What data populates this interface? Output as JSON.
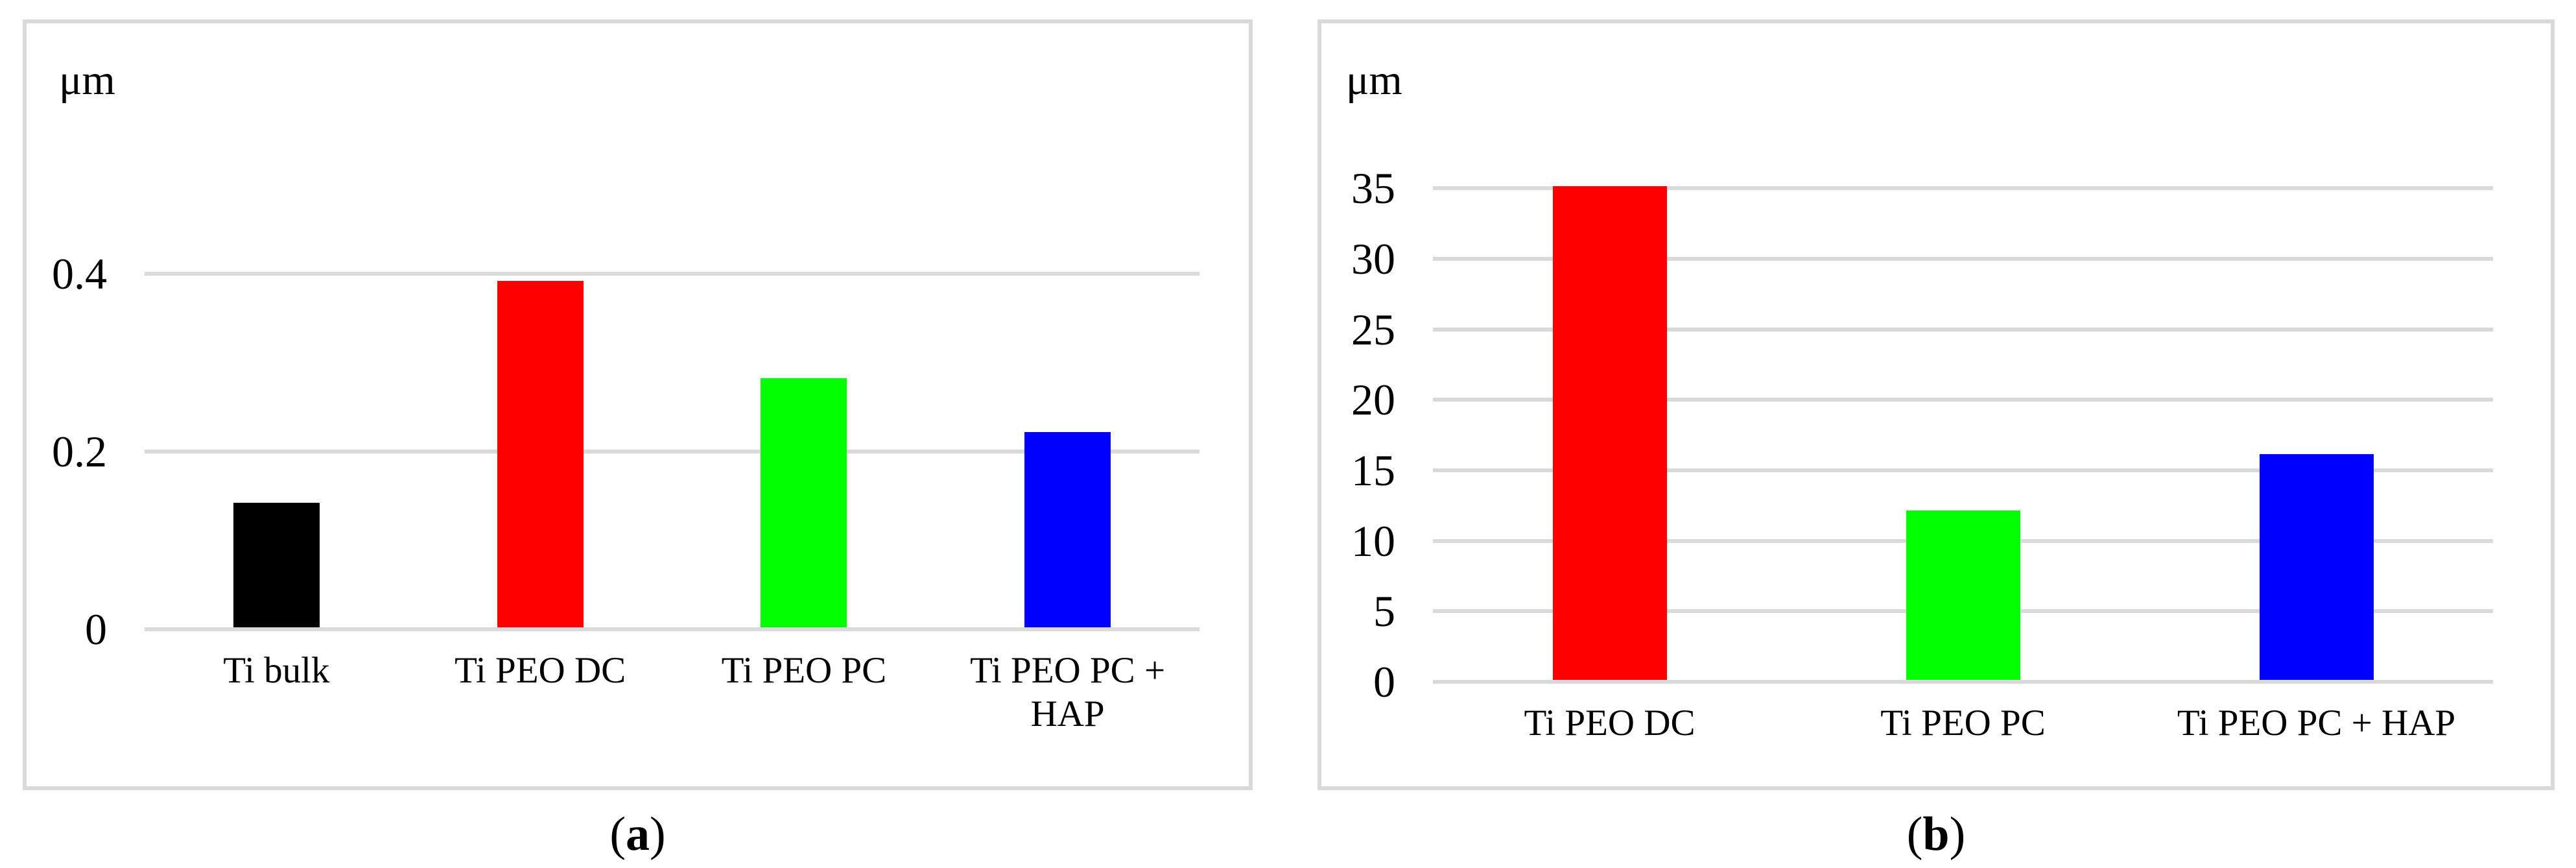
{
  "style": {
    "background": "#FFFFFF",
    "grid_color": "#D9D9D9",
    "panel_border_color": "#D9D9D9",
    "text_color": "#000000"
  },
  "captions": {
    "open": "(",
    "close": ")",
    "a": "a",
    "b": "b"
  },
  "chart_data": [
    {
      "type": "bar",
      "panel": "a",
      "title": "",
      "xlabel": "",
      "ylabel": "μm",
      "categories": [
        "Ti bulk",
        "Ti PEO DC",
        "Ti PEO PC",
        "Ti PEO PC + HAP"
      ],
      "values": [
        0.14,
        0.39,
        0.28,
        0.22
      ],
      "bar_colors": [
        "#000000",
        "#FF0000",
        "#00FF00",
        "#0000FF"
      ],
      "yticks": [
        0,
        0.2,
        0.4
      ],
      "ytick_labels": [
        "0",
        "0.2",
        "0.4"
      ],
      "ylim": [
        0,
        0.45
      ],
      "grid": true,
      "legend": false
    },
    {
      "type": "bar",
      "panel": "b",
      "title": "",
      "xlabel": "",
      "ylabel": "μm",
      "categories": [
        "Ti PEO DC",
        "Ti PEO PC",
        "Ti PEO PC + HAP"
      ],
      "values": [
        35,
        12,
        16
      ],
      "bar_colors": [
        "#FF0000",
        "#00FF00",
        "#0000FF"
      ],
      "yticks": [
        0,
        5,
        10,
        15,
        20,
        25,
        30,
        35
      ],
      "ytick_labels": [
        "0",
        "5",
        "10",
        "15",
        "20",
        "25",
        "30",
        "35"
      ],
      "ylim": [
        0,
        38
      ],
      "grid": true,
      "legend": false
    }
  ]
}
